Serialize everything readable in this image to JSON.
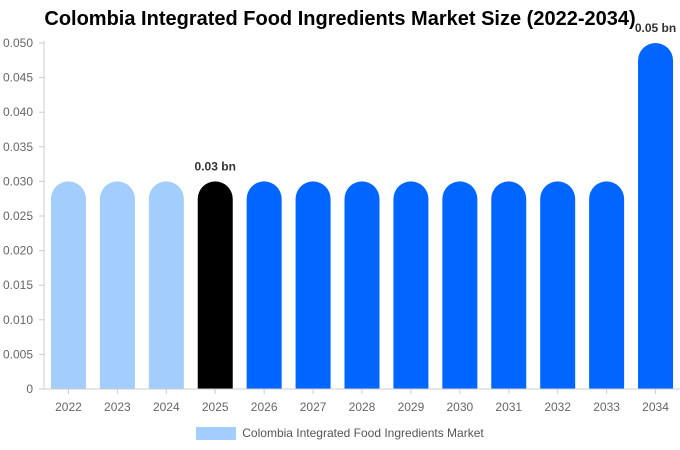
{
  "chart_data": {
    "type": "bar",
    "title": "Colombia Integrated Food Ingredients Market Size (2022-2034)",
    "categories": [
      "2022",
      "2023",
      "2024",
      "2025",
      "2026",
      "2027",
      "2028",
      "2029",
      "2030",
      "2031",
      "2032",
      "2033",
      "2034"
    ],
    "series": [
      {
        "name": "Colombia Integrated Food Ingredients Market",
        "values": [
          0.03,
          0.03,
          0.03,
          0.03,
          0.03,
          0.03,
          0.03,
          0.03,
          0.03,
          0.03,
          0.03,
          0.03,
          0.05
        ]
      }
    ],
    "bar_colors": [
      "#a3cdfc",
      "#a3cdfc",
      "#a3cdfc",
      "#000000",
      "#0066ff",
      "#0066ff",
      "#0066ff",
      "#0066ff",
      "#0066ff",
      "#0066ff",
      "#0066ff",
      "#0066ff",
      "#0066ff"
    ],
    "data_labels": [
      {
        "category": "2025",
        "text": "0.03 bn"
      },
      {
        "category": "2034",
        "text": "0.05 bn"
      }
    ],
    "yticks": [
      "0",
      "0.005",
      "0.010",
      "0.015",
      "0.020",
      "0.025",
      "0.030",
      "0.035",
      "0.040",
      "0.045",
      "0.050"
    ],
    "ylim": [
      0,
      0.05
    ],
    "xlabel": "",
    "ylabel": "",
    "grid": false,
    "legend_position": "bottom-center",
    "legend_color": "#a3cdfc"
  }
}
